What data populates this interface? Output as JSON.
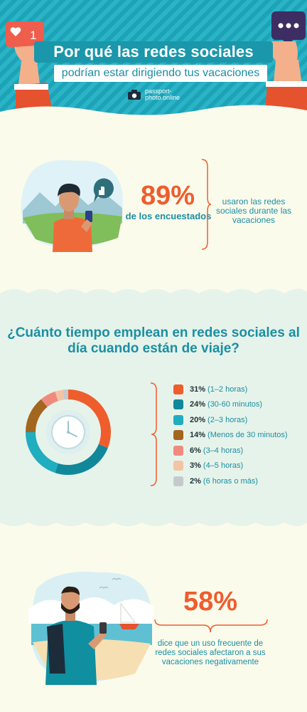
{
  "header": {
    "title_line1": "Por qué las redes sociales",
    "title_line2": "podrían estar dirigiendo tus vacaciones",
    "brand": "passport-photo.online",
    "notification_count": "1"
  },
  "stat1": {
    "value": "89%",
    "subject": "de los encuestados",
    "description": "usaron las redes sociales durante las vacaciones"
  },
  "time_question": "¿Cuánto tiempo emplean en redes sociales al día cuando están de viaje?",
  "chart_data": {
    "type": "pie",
    "categories": [
      "1–2 horas",
      "30-60 minutos",
      "2–3 horas",
      "Menos de 30 minutos",
      "3–4 horas",
      "4–5 horas",
      "6 horas o más"
    ],
    "values": [
      31,
      24,
      20,
      14,
      6,
      3,
      2
    ],
    "colors": [
      "#ef5d2d",
      "#11879a",
      "#20adc0",
      "#a2661e",
      "#ef8b7d",
      "#f3c4a4",
      "#c6c9cc"
    ],
    "labels": [
      {
        "pct": "31%",
        "text": "(1–2 horas)"
      },
      {
        "pct": "24%",
        "text": "(30-60 minutos)"
      },
      {
        "pct": "20%",
        "text": "(2–3 horas)"
      },
      {
        "pct": "14%",
        "text": "(Menos de 30 minutos)"
      },
      {
        "pct": "6%",
        "text": "(3–4 horas)"
      },
      {
        "pct": "3%",
        "text": "(4–5 horas)"
      },
      {
        "pct": "2%",
        "text": "(6 horas o más)"
      }
    ]
  },
  "stat2": {
    "value": "58%",
    "description": "dice que un uso frecuente de redes sociales afectaron a sus vacaciones negativamente"
  }
}
